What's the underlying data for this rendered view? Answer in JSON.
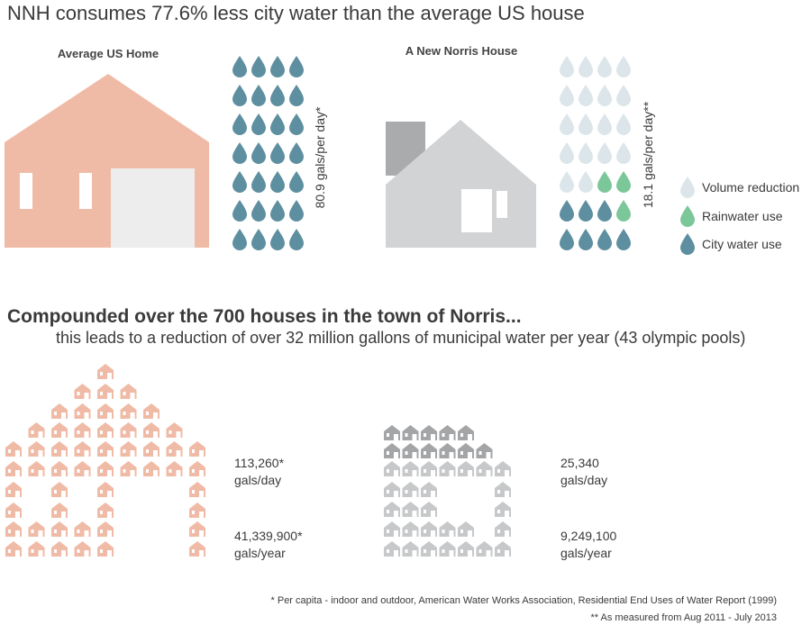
{
  "header": {
    "title": "NNH consumes 77.6% less city water than the average US house"
  },
  "us_home": {
    "label": "Average US Home",
    "usage": "80.9 gals/per day*"
  },
  "norris_house": {
    "label": "A New Norris House",
    "usage": "18.1 gals/per day**"
  },
  "legend": [
    "Volume reduction",
    "Rainwater use",
    "City water use"
  ],
  "compound": {
    "title": "Compounded over the 700 houses in the town of Norris...",
    "subtitle": "this leads to a reduction of over 32 million gallons of municipal water per year (43 olympic pools)"
  },
  "totals": {
    "us": {
      "day": "113,260*",
      "day_unit": "gals/day",
      "year": "41,339,900*",
      "year_unit": "gals/year"
    },
    "norris": {
      "day": "25,340",
      "day_unit": "gals/day",
      "year": "9,249,100",
      "year_unit": "gals/year"
    }
  },
  "footnotes": [
    "* Per capita - indoor and outdoor, American Water Works Association, Residential End Uses of Water Report (1999)",
    "** As measured from Aug 2011 - July 2013"
  ]
}
